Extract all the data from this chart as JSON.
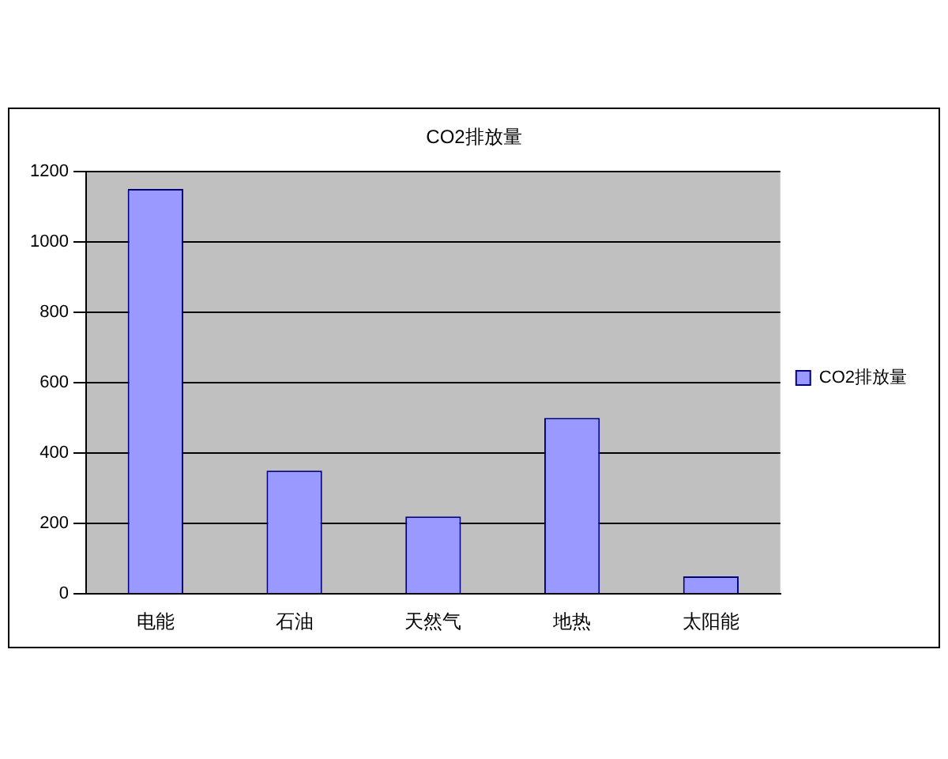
{
  "chart_data": {
    "type": "bar",
    "title": "CO2排放量",
    "categories": [
      "电能",
      "石油",
      "天然气",
      "地热",
      "太阳能"
    ],
    "series": [
      {
        "name": "CO2排放量",
        "color": "#9999ff",
        "values": [
          1150,
          350,
          220,
          500,
          50
        ]
      }
    ],
    "ylim": [
      0,
      1200
    ],
    "yticks": [
      0,
      200,
      400,
      600,
      800,
      1000,
      1200
    ],
    "grid": "y",
    "legend": "right"
  }
}
